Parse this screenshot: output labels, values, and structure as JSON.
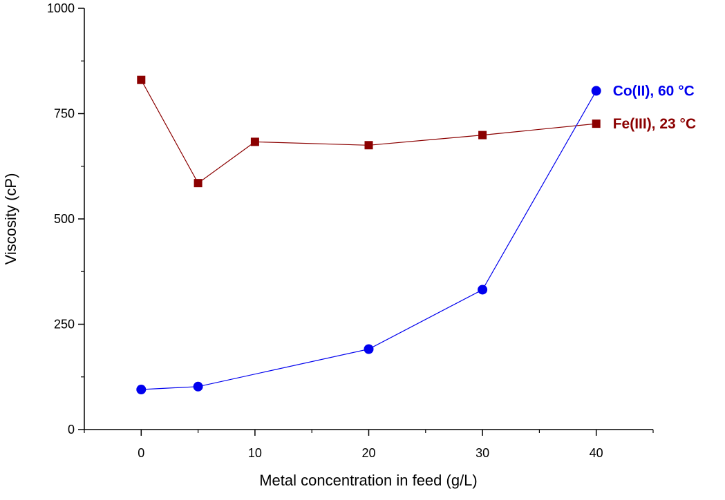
{
  "chart_data": {
    "type": "line",
    "title": "",
    "xlabel": "Metal concentration in feed (g/L)",
    "ylabel": "Viscosity (cP)",
    "xlim": [
      -5,
      45
    ],
    "ylim": [
      0,
      1000
    ],
    "x_ticks": [
      0,
      10,
      20,
      30,
      40
    ],
    "x_minor_ticks": [
      -5,
      5,
      15,
      25,
      35,
      45
    ],
    "y_ticks": [
      0,
      250,
      500,
      750,
      1000
    ],
    "y_minor_ticks": [
      125,
      375,
      625,
      875
    ],
    "grid": false,
    "legend": "none",
    "series": [
      {
        "name": "Fe(III), 23 °C",
        "color": "#8b0000",
        "marker": "square",
        "x": [
          0,
          5,
          10,
          20,
          30,
          40
        ],
        "y": [
          830,
          585,
          683,
          675,
          699,
          726
        ]
      },
      {
        "name": "Co(II), 60 °C",
        "color": "#0000ee",
        "marker": "circle",
        "x": [
          0,
          5,
          20,
          30,
          40
        ],
        "y": [
          95,
          102,
          191,
          332,
          804
        ]
      }
    ]
  }
}
